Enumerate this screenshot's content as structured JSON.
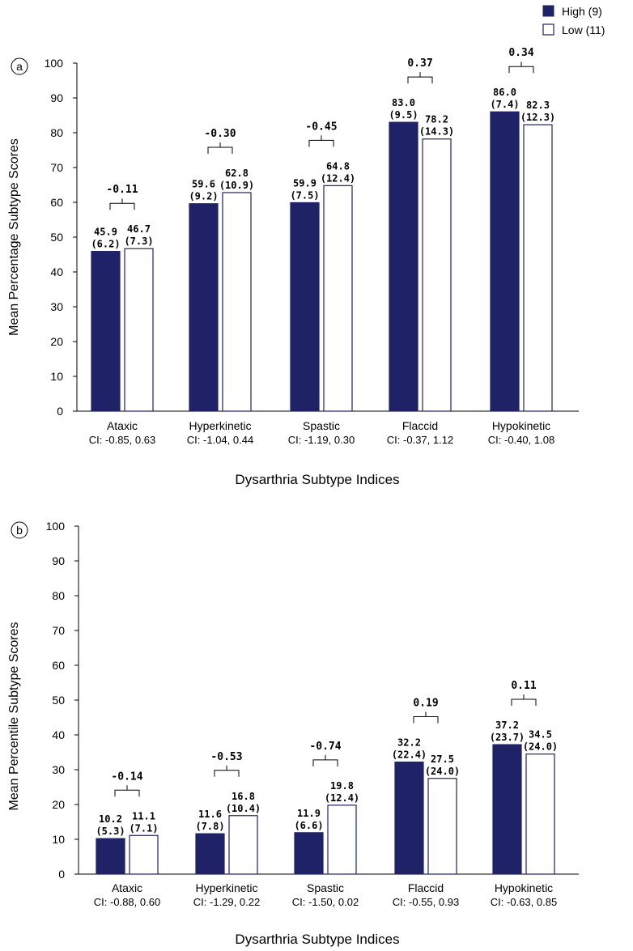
{
  "legend": {
    "items": [
      {
        "label": "High (9)",
        "style": "filled",
        "color": "#1f2266"
      },
      {
        "label": "Low (11)",
        "style": "outline",
        "color": "#1f2266"
      }
    ]
  },
  "colors": {
    "high": "#1f2266",
    "low_fill": "#ffffff",
    "low_stroke": "#1f2266",
    "axis": "#000000"
  },
  "chart_data": [
    {
      "type": "bar",
      "panel_label": "a",
      "xlabel": "Dysarthria Subtype Indices",
      "ylabel": "Mean Percentage Subtype Scores",
      "ylim": [
        0,
        100
      ],
      "yticks": [
        0,
        10,
        20,
        30,
        40,
        50,
        60,
        70,
        80,
        90,
        100
      ],
      "categories": [
        "Ataxic",
        "Hyperkinetic",
        "Spastic",
        "Flaccid",
        "Hypokinetic"
      ],
      "ci_labels": [
        "CI: -0.85, 0.63",
        "CI: -1.04, 0.44",
        "CI: -1.19, 0.30",
        "CI: -0.37, 1.12",
        "CI: -0.40, 1.08"
      ],
      "effect_sizes": [
        "-0.11",
        "-0.30",
        "-0.45",
        "0.37",
        "0.34"
      ],
      "series": [
        {
          "name": "High (9)",
          "values": [
            45.9,
            59.6,
            59.9,
            83.0,
            86.0
          ],
          "labels": [
            "45.9",
            "59.6",
            "59.9",
            "83.0",
            "86.0"
          ],
          "sd_labels": [
            "(6.2)",
            "(9.2)",
            "(7.5)",
            "(9.5)",
            "(7.4)"
          ]
        },
        {
          "name": "Low (11)",
          "values": [
            46.7,
            62.8,
            64.8,
            78.2,
            82.3
          ],
          "labels": [
            "46.7",
            "62.8",
            "64.8",
            "78.2",
            "82.3"
          ],
          "sd_labels": [
            "(7.3)",
            "(10.9)",
            "(12.4)",
            "(14.3)",
            "(12.3)"
          ]
        }
      ]
    },
    {
      "type": "bar",
      "panel_label": "b",
      "xlabel": "Dysarthria Subtype Indices",
      "ylabel": "Mean Percentile Subtype Scores",
      "ylim": [
        0,
        100
      ],
      "yticks": [
        0,
        10,
        20,
        30,
        40,
        50,
        60,
        70,
        80,
        90,
        100
      ],
      "categories": [
        "Ataxic",
        "Hyperkinetic",
        "Spastic",
        "Flaccid",
        "Hypokinetic"
      ],
      "ci_labels": [
        "CI: -0.88, 0.60",
        "CI: -1.29, 0.22",
        "CI: -1.50, 0.02",
        "CI: -0.55, 0.93",
        "CI: -0.63, 0.85"
      ],
      "effect_sizes": [
        "-0.14",
        "-0.53",
        "-0.74",
        "0.19",
        "0.11"
      ],
      "series": [
        {
          "name": "High (9)",
          "values": [
            10.2,
            11.6,
            11.9,
            32.2,
            37.2
          ],
          "labels": [
            "10.2",
            "11.6",
            "11.9",
            "32.2",
            "37.2"
          ],
          "sd_labels": [
            "(5.3)",
            "(7.8)",
            "(6.6)",
            "(22.4)",
            "(23.7)"
          ]
        },
        {
          "name": "Low (11)",
          "values": [
            11.1,
            16.8,
            19.8,
            27.5,
            34.5
          ],
          "labels": [
            "11.1",
            "16.8",
            "19.8",
            "27.5",
            "34.5"
          ],
          "sd_labels": [
            "(7.1)",
            "(10.4)",
            "(12.4)",
            "(24.0)",
            "(24.0)"
          ]
        }
      ]
    }
  ]
}
